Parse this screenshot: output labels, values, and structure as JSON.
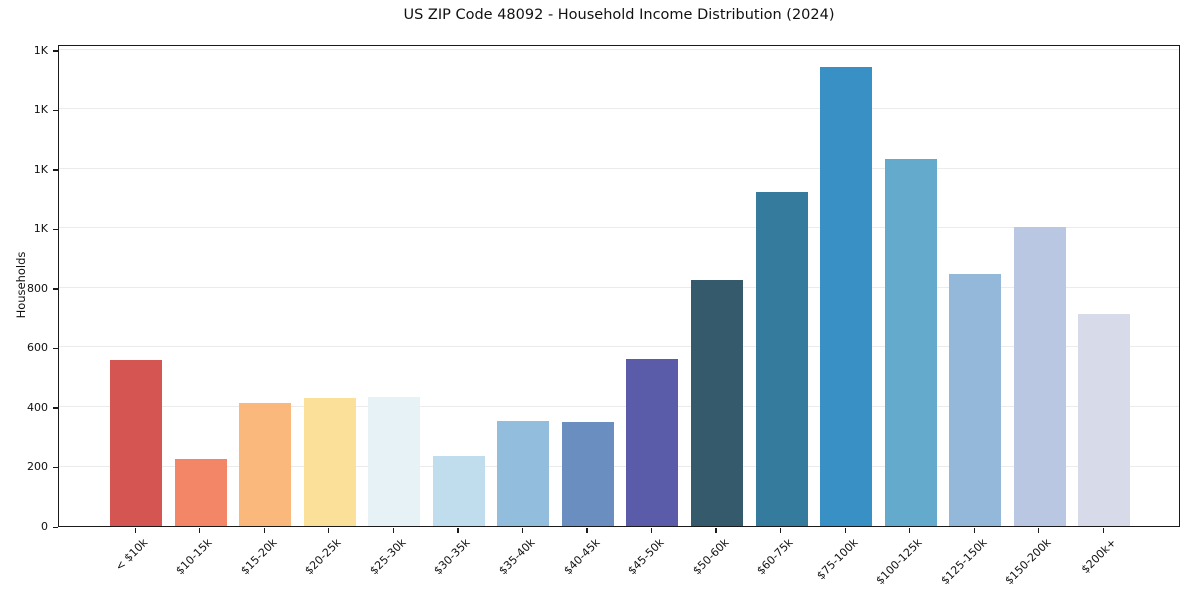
{
  "chart_data": {
    "type": "bar",
    "title": "US ZIP Code 48092 - Household Income Distribution (2024)",
    "xlabel": "",
    "ylabel": "Households",
    "categories": [
      "< $10k",
      "$10-15k",
      "$15-20k",
      "$20-25k",
      "$25-30k",
      "$30-35k",
      "$35-40k",
      "$40-45k",
      "$45-50k",
      "$50-60k",
      "$60-75k",
      "$75-100k",
      "$100-125k",
      "$125-150k",
      "$150-200k",
      "$200k+"
    ],
    "values": [
      557,
      225,
      412,
      429,
      434,
      237,
      353,
      351,
      562,
      826,
      1121,
      1544,
      1232,
      848,
      1004,
      712
    ],
    "bar_colors": [
      "#d45551",
      "#f38666",
      "#fab87d",
      "#fbe09a",
      "#e6f2f5",
      "#bfdded",
      "#92bddc",
      "#6a8ebf",
      "#5a5caa",
      "#355a6c",
      "#347b9d",
      "#3890c5",
      "#64aacd",
      "#94b8da",
      "#b9c7e2",
      "#d7dae8"
    ],
    "yticks": [
      {
        "value": 0,
        "label": "0"
      },
      {
        "value": 200,
        "label": "200"
      },
      {
        "value": 400,
        "label": "400"
      },
      {
        "value": 600,
        "label": "600"
      },
      {
        "value": 800,
        "label": "800"
      },
      {
        "value": 1000,
        "label": "1K"
      },
      {
        "value": 1200,
        "label": "1K"
      },
      {
        "value": 1400,
        "label": "1K"
      },
      {
        "value": 1600,
        "label": "1K"
      }
    ],
    "ylim": [
      0,
      1620
    ],
    "grid": "horizontal",
    "grid_color": "#ebebeb",
    "legend": "none",
    "background_color": "#ffffff"
  }
}
